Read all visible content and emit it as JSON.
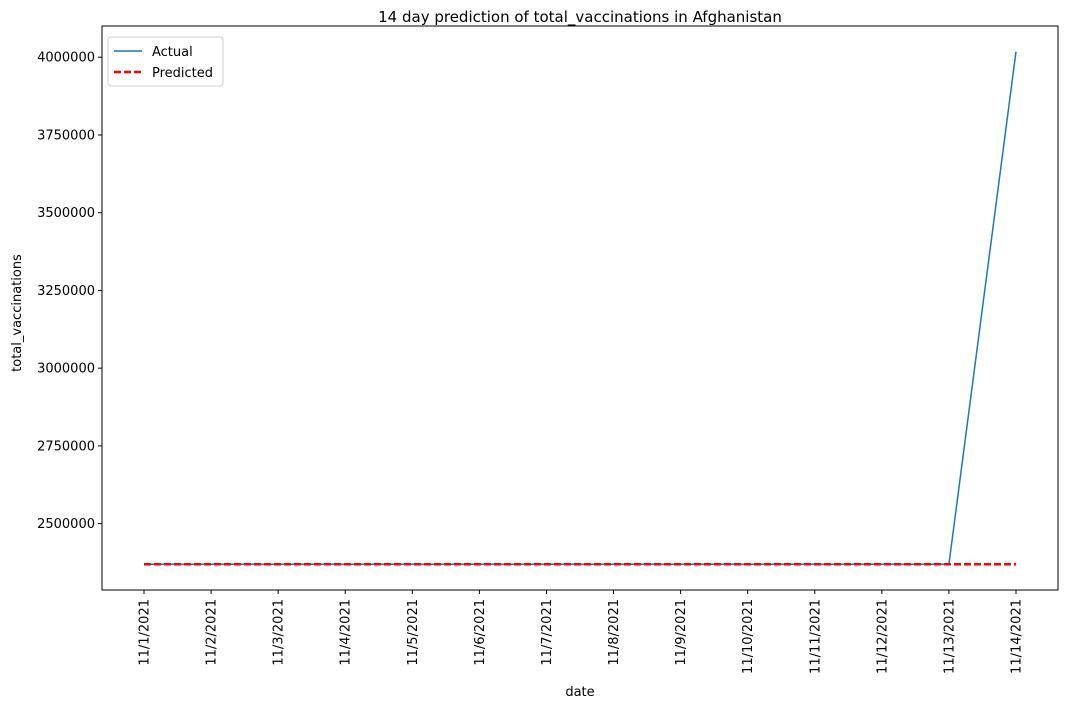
{
  "chart_data": {
    "type": "line",
    "title": "14 day prediction of total_vaccinations in Afghanistan",
    "xlabel": "date",
    "ylabel": "total_vaccinations",
    "x": [
      "11/1/2021",
      "11/2/2021",
      "11/3/2021",
      "11/4/2021",
      "11/5/2021",
      "11/6/2021",
      "11/7/2021",
      "11/8/2021",
      "11/9/2021",
      "11/10/2021",
      "11/11/2021",
      "11/12/2021",
      "11/13/2021",
      "11/14/2021"
    ],
    "series": [
      {
        "name": "Actual",
        "color": "#1f77b4",
        "style": "solid",
        "values": [
          2369000,
          2369000,
          2369000,
          2369000,
          2369000,
          2369000,
          2369000,
          2369000,
          2369000,
          2369000,
          2369000,
          2369000,
          2369000,
          4018000
        ]
      },
      {
        "name": "Predicted",
        "color": "#ff0000",
        "style": "dashed",
        "values": [
          2369000,
          2369000,
          2369000,
          2369000,
          2369000,
          2369000,
          2369000,
          2369000,
          2369000,
          2369000,
          2369000,
          2369000,
          2369000,
          2369000
        ]
      }
    ],
    "yticks": [
      2500000,
      2750000,
      3000000,
      3250000,
      3500000,
      3750000,
      4000000
    ],
    "ylim": [
      2286500,
      4100500
    ],
    "grid": false,
    "legend_position": "top-left"
  }
}
